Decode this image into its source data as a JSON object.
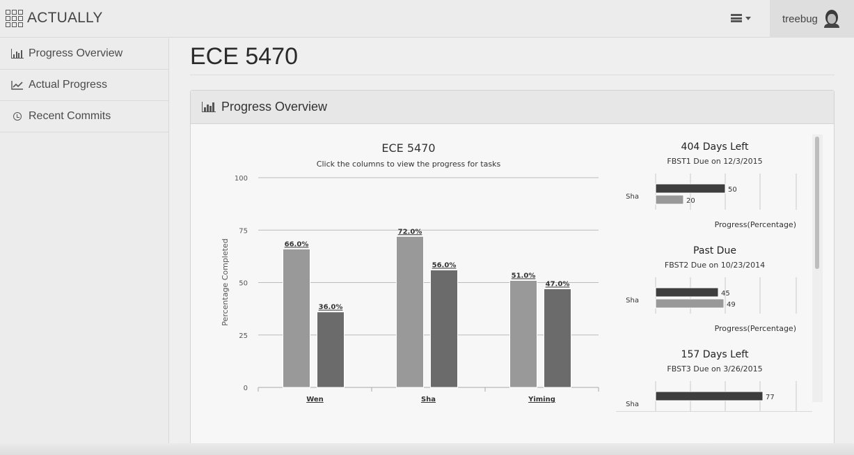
{
  "app": {
    "brand": "ACTUALLY",
    "user": "treebug"
  },
  "sidebar": {
    "items": [
      {
        "label": "Progress Overview",
        "icon": "bar-chart-icon"
      },
      {
        "label": "Actual Progress",
        "icon": "line-chart-icon"
      },
      {
        "label": "Recent Commits",
        "icon": "clock-icon"
      }
    ]
  },
  "page": {
    "title": "ECE 5470"
  },
  "panel": {
    "title": "Progress Overview"
  },
  "colors": {
    "light_bar": "#999999",
    "dark_bar": "#6b6b6b",
    "darkest_bar": "#3e3e3e"
  },
  "chart_data": [
    {
      "type": "bar",
      "title": "ECE 5470",
      "subtitle": "Click the columns to view the progress for tasks",
      "ylabel": "Percentage Completed",
      "ylim": [
        0,
        100
      ],
      "yticks": [
        0,
        25,
        50,
        75,
        100
      ],
      "categories": [
        "Wen",
        "Sha",
        "Yiming"
      ],
      "series": [
        {
          "values": [
            66.0,
            72.0,
            51.0
          ],
          "labels": [
            "66.0%",
            "72.0%",
            "51.0%"
          ]
        },
        {
          "values": [
            36.0,
            56.0,
            47.0
          ],
          "labels": [
            "36.0%",
            "56.0%",
            "47.0%"
          ]
        }
      ]
    },
    {
      "type": "bar",
      "orientation": "horizontal",
      "title": "404 Days Left",
      "subtitle": "FBST1 Due on 12/3/2015",
      "categories": [
        "Sha"
      ],
      "xlabel": "Progress(Percentage)",
      "series": [
        {
          "values": [
            50
          ]
        },
        {
          "values": [
            20
          ]
        }
      ]
    },
    {
      "type": "bar",
      "orientation": "horizontal",
      "title": "Past Due",
      "subtitle": "FBST2 Due on 10/23/2014",
      "categories": [
        "Sha"
      ],
      "xlabel": "Progress(Percentage)",
      "series": [
        {
          "values": [
            45
          ]
        },
        {
          "values": [
            49
          ]
        }
      ]
    },
    {
      "type": "bar",
      "orientation": "horizontal",
      "title": "157 Days Left",
      "subtitle": "FBST3 Due on 3/26/2015",
      "categories": [
        "Sha"
      ],
      "xlabel": "",
      "series": [
        {
          "values": [
            77
          ]
        }
      ]
    }
  ]
}
